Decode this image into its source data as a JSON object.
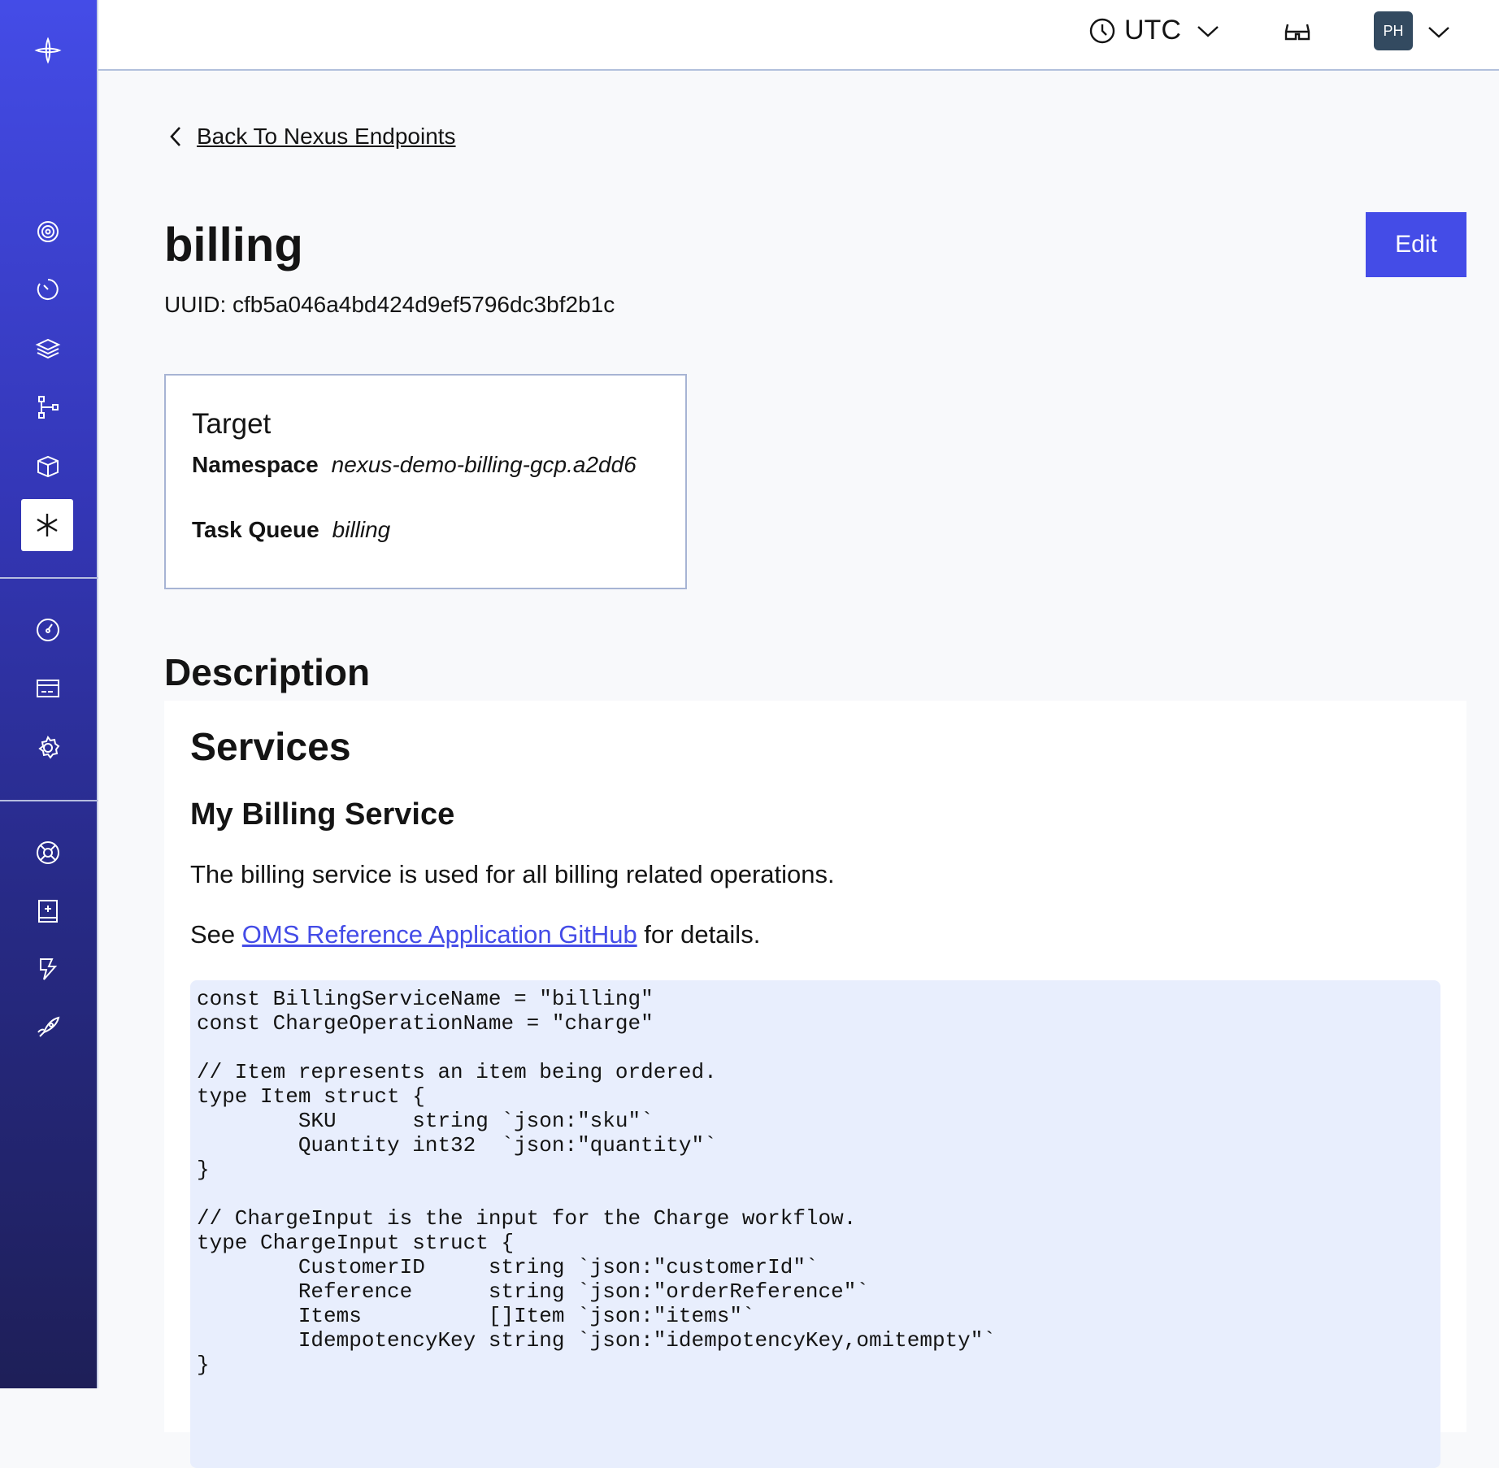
{
  "sidebar": {
    "items": [
      {
        "name": "logo-icon"
      },
      {
        "name": "workflows-icon"
      },
      {
        "name": "schedules-icon"
      },
      {
        "name": "namespaces-icon"
      },
      {
        "name": "nexus-flow-icon"
      },
      {
        "name": "archive-box-icon"
      },
      {
        "name": "nexus-icon",
        "active": true
      },
      {
        "name": "usage-icon"
      },
      {
        "name": "billing-icon"
      },
      {
        "name": "settings-icon"
      },
      {
        "name": "support-icon"
      },
      {
        "name": "docs-icon"
      },
      {
        "name": "feedback-icon"
      },
      {
        "name": "launch-icon"
      }
    ]
  },
  "header": {
    "timezone": "UTC",
    "avatar_initials": "PH"
  },
  "back_link": "Back To Nexus Endpoints",
  "title": "billing",
  "edit_label": "Edit",
  "uuid": "UUID: cfb5a046a4bd424d9ef5796dc3bf2b1c",
  "target": {
    "heading": "Target",
    "namespace_label": "Namespace",
    "namespace_value": "nexus-demo-billing-gcp.a2dd6",
    "task_queue_label": "Task Queue",
    "task_queue_value": "billing"
  },
  "description": {
    "heading": "Description",
    "h1": "Services",
    "h2": "My Billing Service",
    "p1": "The billing service is used for all billing related operations.",
    "p2_prefix": "See ",
    "p2_link": "OMS Reference Application GitHub",
    "p2_suffix": " for details.",
    "code": "const BillingServiceName = \"billing\"\nconst ChargeOperationName = \"charge\"\n\n// Item represents an item being ordered.\ntype Item struct {\n\tSKU      string `json:\"sku\"`\n\tQuantity int32  `json:\"quantity\"`\n}\n\n// ChargeInput is the input for the Charge workflow.\ntype ChargeInput struct {\n\tCustomerID     string `json:\"customerId\"`\n\tReference      string `json:\"orderReference\"`\n\tItems          []Item `json:\"items\"`\n\tIdempotencyKey string `json:\"idempotencyKey,omitempty\"`\n}"
  },
  "colors": {
    "accent": "#444ce7",
    "sidebar_top": "#444ce7",
    "sidebar_bottom": "#1e1f58",
    "code_bg": "#e8eefd",
    "avatar_bg": "#334a60"
  }
}
